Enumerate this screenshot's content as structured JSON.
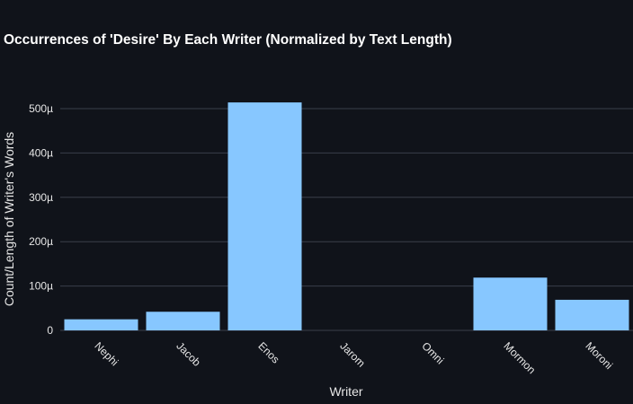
{
  "chart_data": {
    "type": "bar",
    "title": "Occurrences of 'Desire' By Each Writer (Normalized by Text Length)",
    "xlabel": "Writer",
    "ylabel": "Count/Length of Writer's Words",
    "categories": [
      "Nephi",
      "Jacob",
      "Enos",
      "Jarom",
      "Omni",
      "Mormon",
      "Moroni"
    ],
    "values": [
      2.5e-05,
      4.2e-05,
      0.000514,
      0,
      0,
      0.000119,
      6.9e-05
    ],
    "ylim": [
      0,
      0.0005
    ],
    "yticks": [
      0,
      0.0001,
      0.0002,
      0.0003,
      0.0004,
      0.0005
    ],
    "ytick_labels": [
      "0",
      "100µ",
      "200µ",
      "300µ",
      "400µ",
      "500µ"
    ],
    "grid": true,
    "bar_color": "#87c7ff",
    "background": "#10131a"
  }
}
